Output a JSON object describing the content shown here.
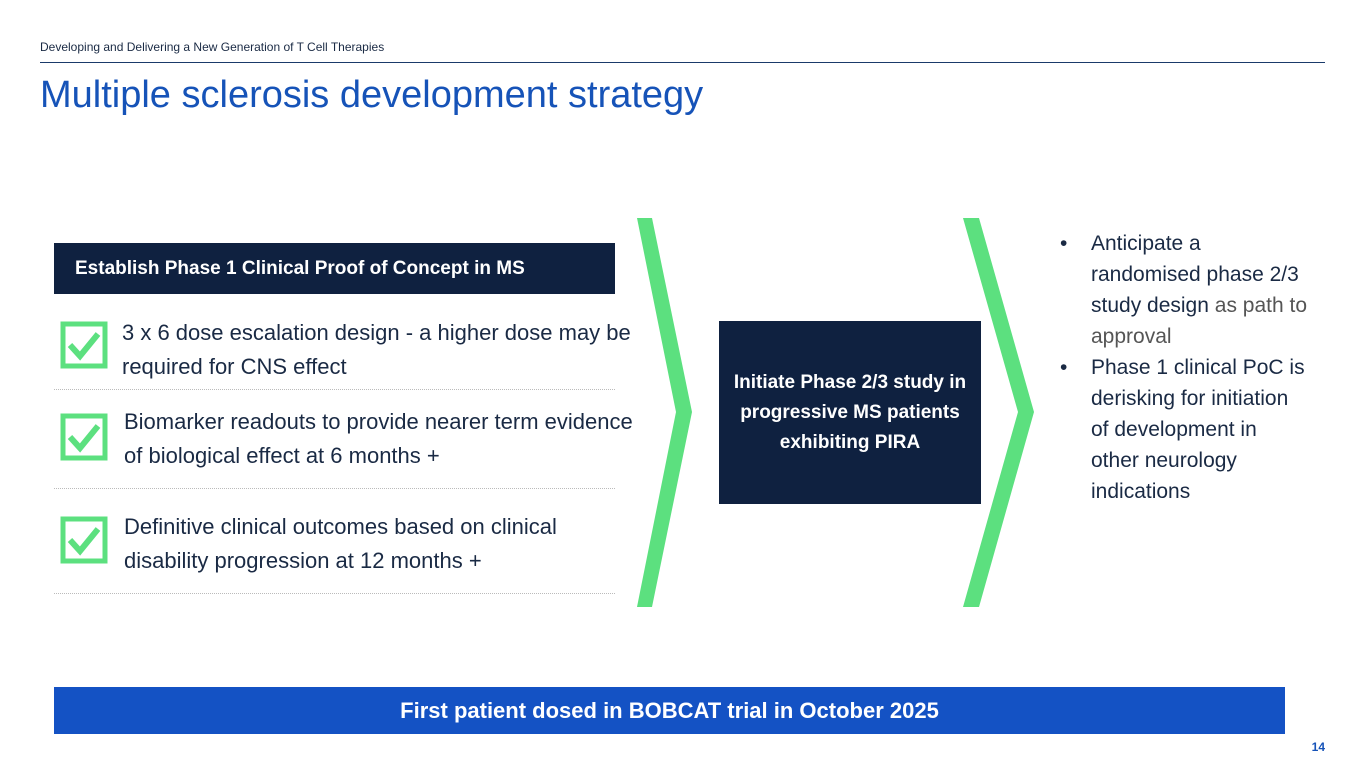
{
  "header": {
    "subtitle": "Developing and Delivering a New Generation of T Cell Therapies",
    "title": "Multiple sclerosis development strategy"
  },
  "phase1": {
    "heading": "Establish Phase 1 Clinical Proof of Concept in MS",
    "items": [
      "3 x 6 dose escalation design - a higher dose may be required for CNS effect",
      "Biomarker readouts to provide nearer term evidence of biological effect at 6 months +",
      "Definitive clinical outcomes based on clinical disability progression at 12 months +"
    ]
  },
  "phase23": {
    "label": "Initiate Phase 2/3 study in progressive MS patients exhibiting PIRA"
  },
  "outlook": {
    "bullets": [
      {
        "main": "Anticipate a randomised phase 2/3 study design",
        "muted": "as path to approval"
      },
      {
        "main": "Phase 1 clinical PoC is derisking for initiation of development in other neurology indications"
      }
    ]
  },
  "banner": "First patient dosed in BOBCAT trial in October 2025",
  "page_number": "14"
}
